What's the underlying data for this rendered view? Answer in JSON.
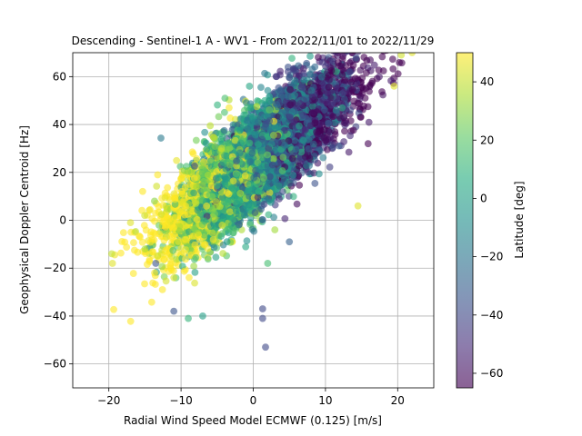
{
  "chart_data": {
    "type": "scatter",
    "title": "Descending - Sentinel-1 A - WV1 - From 2022/11/01 to 2022/11/29",
    "xlabel": "Radial Wind Speed Model ECMWF (0.125) [m/s]",
    "ylabel": "Geophysical Doppler Centroid [Hz]",
    "xlim": [
      -25,
      25
    ],
    "ylim": [
      -70,
      70
    ],
    "xticks": [
      -20,
      -10,
      0,
      10,
      20
    ],
    "yticks": [
      -60,
      -40,
      -20,
      0,
      20,
      40,
      60
    ],
    "grid": true,
    "colorbar": {
      "label": "Latitude [deg]",
      "range": [
        -65,
        50
      ],
      "ticks": [
        -60,
        -40,
        -20,
        0,
        20,
        40
      ],
      "colormap": "viridis",
      "alpha": 0.6
    },
    "point_count_estimate": 6000,
    "point_cloud": {
      "x_range": [
        -19.5,
        22
      ],
      "trend": {
        "slope": 2.35,
        "intercept": 24,
        "unit": "Hz per m/s"
      },
      "spread_hz": 10,
      "latitude_gradient_note": "low x points mostly mid-latitude (0 to 40 deg), high x points mostly southern (-40 to -60 deg)"
    },
    "outliers": [
      {
        "x": -19.5,
        "y": -18,
        "lat": 45
      },
      {
        "x": -19.6,
        "y": -14,
        "lat": 40
      },
      {
        "x": -17.0,
        "y": -1,
        "lat": 45
      },
      {
        "x": -15.0,
        "y": -12,
        "lat": 35
      },
      {
        "x": -13.5,
        "y": -18,
        "lat": -35
      },
      {
        "x": 1.3,
        "y": -37,
        "lat": -40
      },
      {
        "x": 1.3,
        "y": -41,
        "lat": -40
      },
      {
        "x": 1.7,
        "y": -53,
        "lat": -40
      },
      {
        "x": 14.5,
        "y": 6,
        "lat": 45
      },
      {
        "x": 19.5,
        "y": 56,
        "lat": 45
      },
      {
        "x": 20.5,
        "y": 69,
        "lat": 42
      },
      {
        "x": 22.0,
        "y": 70,
        "lat": 45
      },
      {
        "x": -11.0,
        "y": -38,
        "lat": -35
      },
      {
        "x": -9.0,
        "y": -41,
        "lat": 10
      },
      {
        "x": -7.0,
        "y": -40,
        "lat": 0
      },
      {
        "x": 2.0,
        "y": -18,
        "lat": 15
      },
      {
        "x": 5.0,
        "y": -9,
        "lat": -30
      }
    ],
    "colors": {
      "grid": "#b0b0b0",
      "axes": "#000000",
      "background": "#ffffff"
    }
  }
}
